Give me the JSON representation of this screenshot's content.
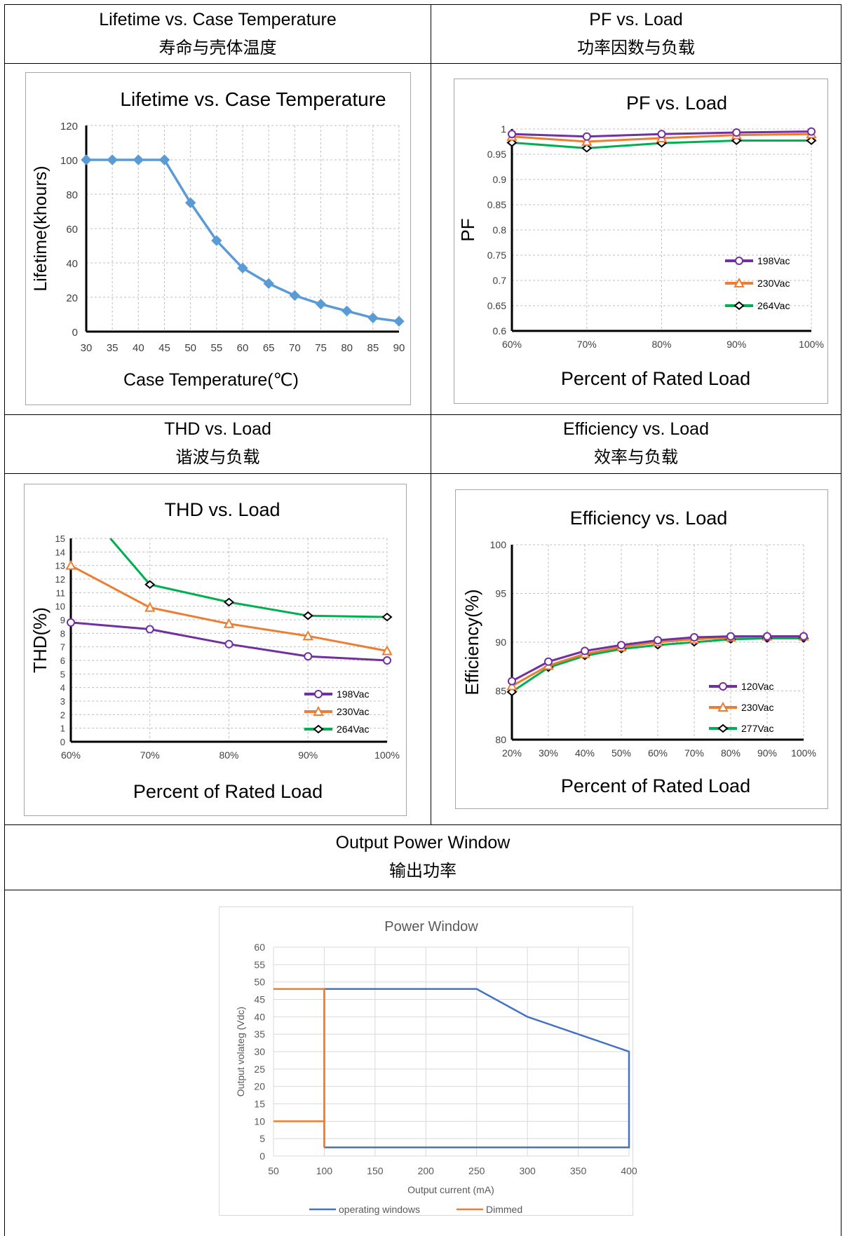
{
  "sections": {
    "lifetime": {
      "title_en": "Lifetime vs. Case Temperature",
      "title_cn": "寿命与壳体温度"
    },
    "pf": {
      "title_en": "PF vs. Load",
      "title_cn": "功率因数与负载"
    },
    "thd": {
      "title_en": "THD vs. Load",
      "title_cn": "谐波与负载"
    },
    "eff": {
      "title_en": "Efficiency vs. Load",
      "title_cn": "效率与负载"
    },
    "power": {
      "title_en": "Output Power Window",
      "title_cn": "输出功率"
    }
  },
  "chart_data": [
    {
      "id": "lifetime",
      "type": "line",
      "title": "Lifetime vs. Case Temperature",
      "xlabel": "Case Temperature(℃)",
      "ylabel": "Lifetime(khours)",
      "x": [
        30,
        35,
        40,
        45,
        50,
        55,
        60,
        65,
        70,
        75,
        80,
        85,
        90
      ],
      "xticks": [
        "30",
        "35",
        "40",
        "45",
        "50",
        "55",
        "60",
        "65",
        "70",
        "75",
        "80",
        "85",
        "90"
      ],
      "ylim": [
        0,
        120
      ],
      "yticks": [
        0,
        20,
        40,
        60,
        80,
        100,
        120
      ],
      "series": [
        {
          "values": [
            100,
            100,
            100,
            100,
            75,
            53,
            37,
            28,
            21,
            16,
            12,
            8,
            6
          ],
          "color": "#5b9bd5",
          "marker": "diamond"
        }
      ],
      "grid": true
    },
    {
      "id": "pf",
      "type": "line",
      "title": "PF vs. Load",
      "xlabel": "Percent of Rated Load",
      "ylabel": "PF",
      "categories": [
        "60%",
        "70%",
        "80%",
        "90%",
        "100%"
      ],
      "ylim": [
        0.6,
        1
      ],
      "yticks": [
        "0.6",
        "0.65",
        "0.7",
        "0.75",
        "0.8",
        "0.85",
        "0.9",
        "0.95",
        "1"
      ],
      "series": [
        {
          "name": "198Vac",
          "values": [
            0.99,
            0.985,
            0.99,
            0.993,
            0.995
          ],
          "color": "#7030a0",
          "marker": "circle"
        },
        {
          "name": "230Vac",
          "values": [
            0.985,
            0.975,
            0.982,
            0.988,
            0.99
          ],
          "color": "#ed7d31",
          "marker": "triangle"
        },
        {
          "name": "264Vac",
          "values": [
            0.973,
            0.962,
            0.972,
            0.977,
            0.977
          ],
          "color": "#00b050",
          "marker": "diamond"
        }
      ],
      "legend": "bottom-right",
      "grid": true
    },
    {
      "id": "thd",
      "type": "line",
      "title": "THD vs. Load",
      "xlabel": "Percent of Rated Load",
      "ylabel": "THD(%)",
      "categories": [
        "60%",
        "70%",
        "80%",
        "90%",
        "100%"
      ],
      "ylim": [
        0,
        15
      ],
      "yticks": [
        "0",
        "1",
        "2",
        "3",
        "4",
        "5",
        "6",
        "7",
        "8",
        "9",
        "10",
        "11",
        "12",
        "13",
        "14",
        "15"
      ],
      "series": [
        {
          "name": "198Vac",
          "values": [
            8.8,
            8.3,
            7.2,
            6.3,
            6.0
          ],
          "color": "#7030a0",
          "marker": "circle"
        },
        {
          "name": "230Vac",
          "values": [
            13.0,
            9.9,
            8.7,
            7.8,
            6.7
          ],
          "color": "#ed7d31",
          "marker": "triangle"
        },
        {
          "name": "264Vac",
          "values": [
            null,
            11.6,
            10.3,
            9.3,
            9.2
          ],
          "color": "#00b050",
          "marker": "diamond",
          "start": [
            65,
            15
          ]
        }
      ],
      "legend": "bottom-right",
      "grid": true
    },
    {
      "id": "eff",
      "type": "line",
      "title": "Efficiency vs. Load",
      "xlabel": "Percent of Rated Load",
      "ylabel": "Efficiency(%)",
      "categories": [
        "20%",
        "30%",
        "40%",
        "50%",
        "60%",
        "70%",
        "80%",
        "90%",
        "100%"
      ],
      "ylim": [
        80,
        100
      ],
      "yticks": [
        "80",
        "85",
        "90",
        "95",
        "100"
      ],
      "series": [
        {
          "name": "120Vac",
          "values": [
            86.0,
            88.0,
            89.1,
            89.7,
            90.2,
            90.5,
            90.6,
            90.6,
            90.6
          ],
          "color": "#7030a0",
          "marker": "circle"
        },
        {
          "name": "230Vac",
          "values": [
            85.5,
            87.6,
            88.8,
            89.5,
            90.0,
            90.3,
            90.5,
            90.6,
            90.6
          ],
          "color": "#ed7d31",
          "marker": "triangle"
        },
        {
          "name": "277Vac",
          "values": [
            84.9,
            87.4,
            88.6,
            89.3,
            89.7,
            90.0,
            90.3,
            90.4,
            90.4
          ],
          "color": "#00b050",
          "marker": "diamond"
        }
      ],
      "legend": "bottom-right",
      "grid": true
    },
    {
      "id": "power",
      "type": "line",
      "title": "Power Window",
      "xlabel": "Output current (mA)",
      "ylabel": "Output volateg (Vdc)",
      "xlim": [
        50,
        400
      ],
      "xticks": [
        "50",
        "100",
        "150",
        "200",
        "250",
        "300",
        "350",
        "400"
      ],
      "ylim": [
        0,
        60
      ],
      "yticks": [
        "0",
        "5",
        "10",
        "15",
        "20",
        "25",
        "30",
        "35",
        "40",
        "45",
        "50",
        "55",
        "60"
      ],
      "series": [
        {
          "name": "operating windows",
          "color": "#4472c4",
          "points": [
            [
              100,
              2.5
            ],
            [
              100,
              48
            ],
            [
              250,
              48
            ],
            [
              300,
              40
            ],
            [
              400,
              30
            ],
            [
              400,
              2.5
            ],
            [
              100,
              2.5
            ]
          ]
        },
        {
          "name": "Dimmed",
          "color": "#ed7d31",
          "points": [
            [
              50,
              48
            ],
            [
              100,
              48
            ],
            [
              100,
              2.5
            ]
          ],
          "extra": [
            [
              50,
              10
            ],
            [
              100,
              10
            ]
          ]
        }
      ],
      "legend": "bottom",
      "grid": true
    }
  ]
}
